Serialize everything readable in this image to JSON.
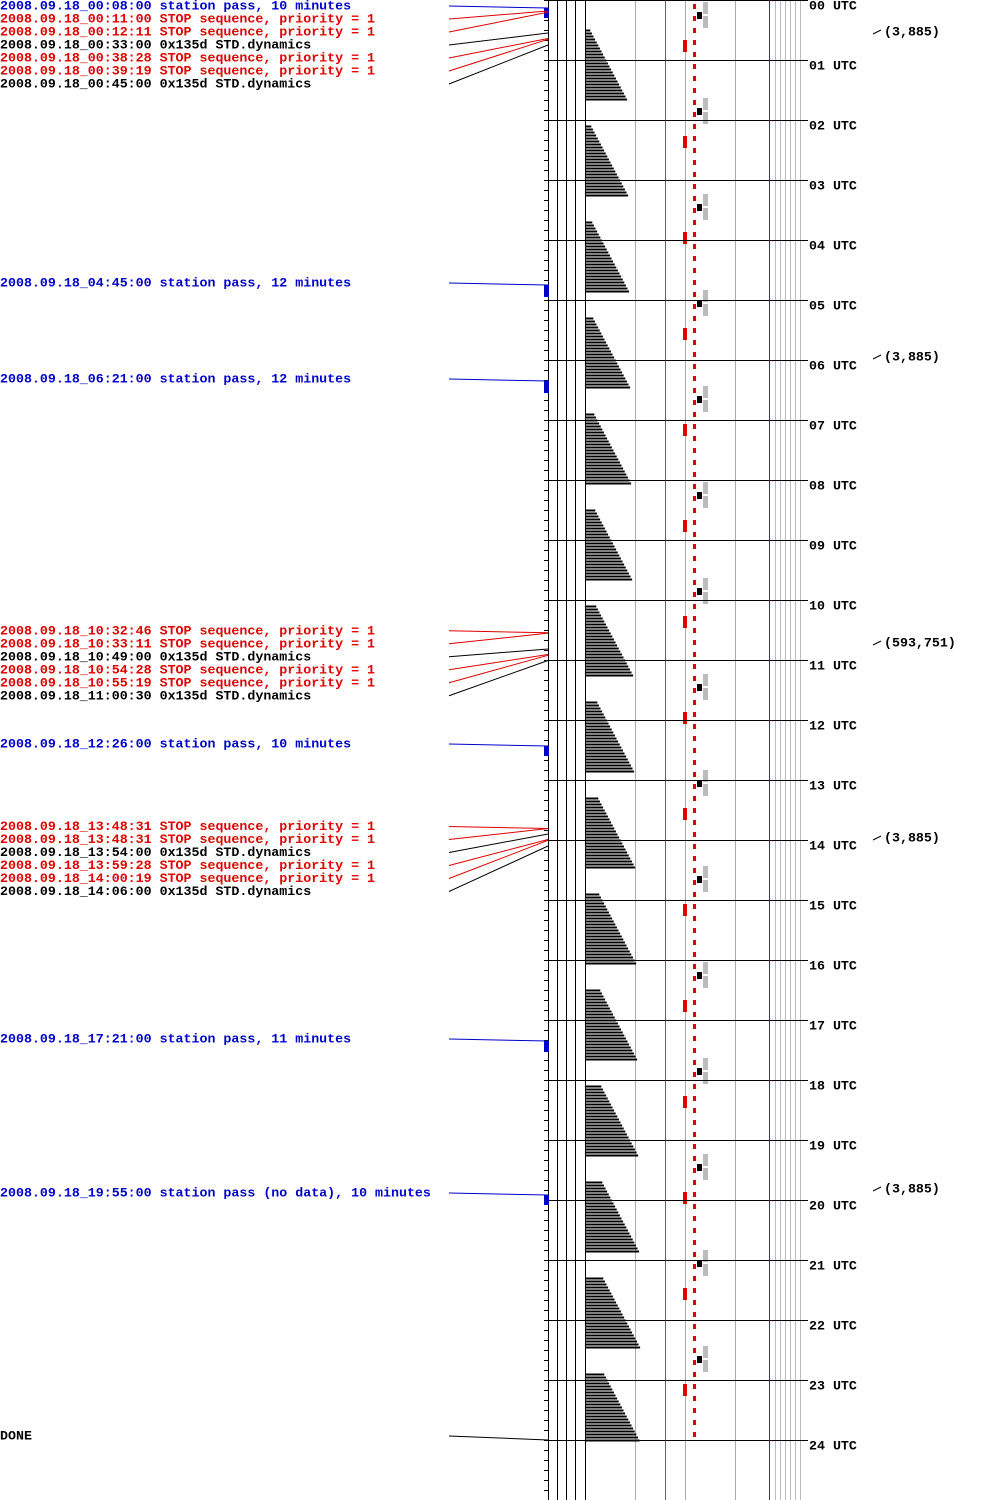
{
  "events": [
    {
      "text": "2008.09.18_00:08:00 station pass, 10 minutes"
    },
    {
      "text": "2008.09.18_00:11:00 STOP sequence, priority = 1"
    },
    {
      "text": "2008.09.18_00:12:11 STOP sequence, priority = 1"
    },
    {
      "text": "2008.09.18_00:33:00 0x135d STD.dynamics"
    },
    {
      "text": "2008.09.18_00:38:28 STOP sequence, priority = 1"
    },
    {
      "text": "2008.09.18_00:39:19 STOP sequence, priority = 1"
    },
    {
      "text": "2008.09.18_00:45:00 0x135d STD.dynamics"
    },
    {
      "text": "2008.09.18_04:45:00 station pass, 12 minutes"
    },
    {
      "text": "2008.09.18_06:21:00 station pass, 12 minutes"
    },
    {
      "text": "2008.09.18_10:32:46 STOP sequence, priority = 1"
    },
    {
      "text": "2008.09.18_10:33:11 STOP sequence, priority = 1"
    },
    {
      "text": "2008.09.18_10:49:00 0x135d STD.dynamics"
    },
    {
      "text": "2008.09.18_10:54:28 STOP sequence, priority = 1"
    },
    {
      "text": "2008.09.18_10:55:19 STOP sequence, priority = 1"
    },
    {
      "text": "2008.09.18_11:00:30 0x135d STD.dynamics"
    },
    {
      "text": "2008.09.18_12:26:00 station pass, 10 minutes"
    },
    {
      "text": "2008.09.18_13:48:31 STOP sequence, priority = 1"
    },
    {
      "text": "2008.09.18_13:48:31 STOP sequence, priority = 1"
    },
    {
      "text": "2008.09.18_13:54:00 0x135d STD.dynamics"
    },
    {
      "text": "2008.09.18_13:59:28 STOP sequence, priority = 1"
    },
    {
      "text": "2008.09.18_14:00:19 STOP sequence, priority = 1"
    },
    {
      "text": "2008.09.18_14:06:00 0x135d STD.dynamics"
    },
    {
      "text": "2008.09.18_17:21:00 station pass, 11 minutes"
    },
    {
      "text": "2008.09.18_19:55:00 station pass (no data), 10 minutes"
    }
  ],
  "done": "DONE",
  "hours": [
    "00 UTC",
    "01 UTC",
    "02 UTC",
    "03 UTC",
    "04 UTC",
    "05 UTC",
    "06 UTC",
    "07 UTC",
    "08 UTC",
    "09 UTC",
    "10 UTC",
    "11 UTC",
    "12 UTC",
    "13 UTC",
    "14 UTC",
    "15 UTC",
    "16 UTC",
    "17 UTC",
    "18 UTC",
    "19 UTC",
    "20 UTC",
    "21 UTC",
    "22 UTC",
    "23 UTC",
    "24 UTC"
  ],
  "annotations": [
    "(3,885)",
    "(3,885)",
    "(593,751)",
    "(3,885)",
    "(3,885)"
  ]
}
